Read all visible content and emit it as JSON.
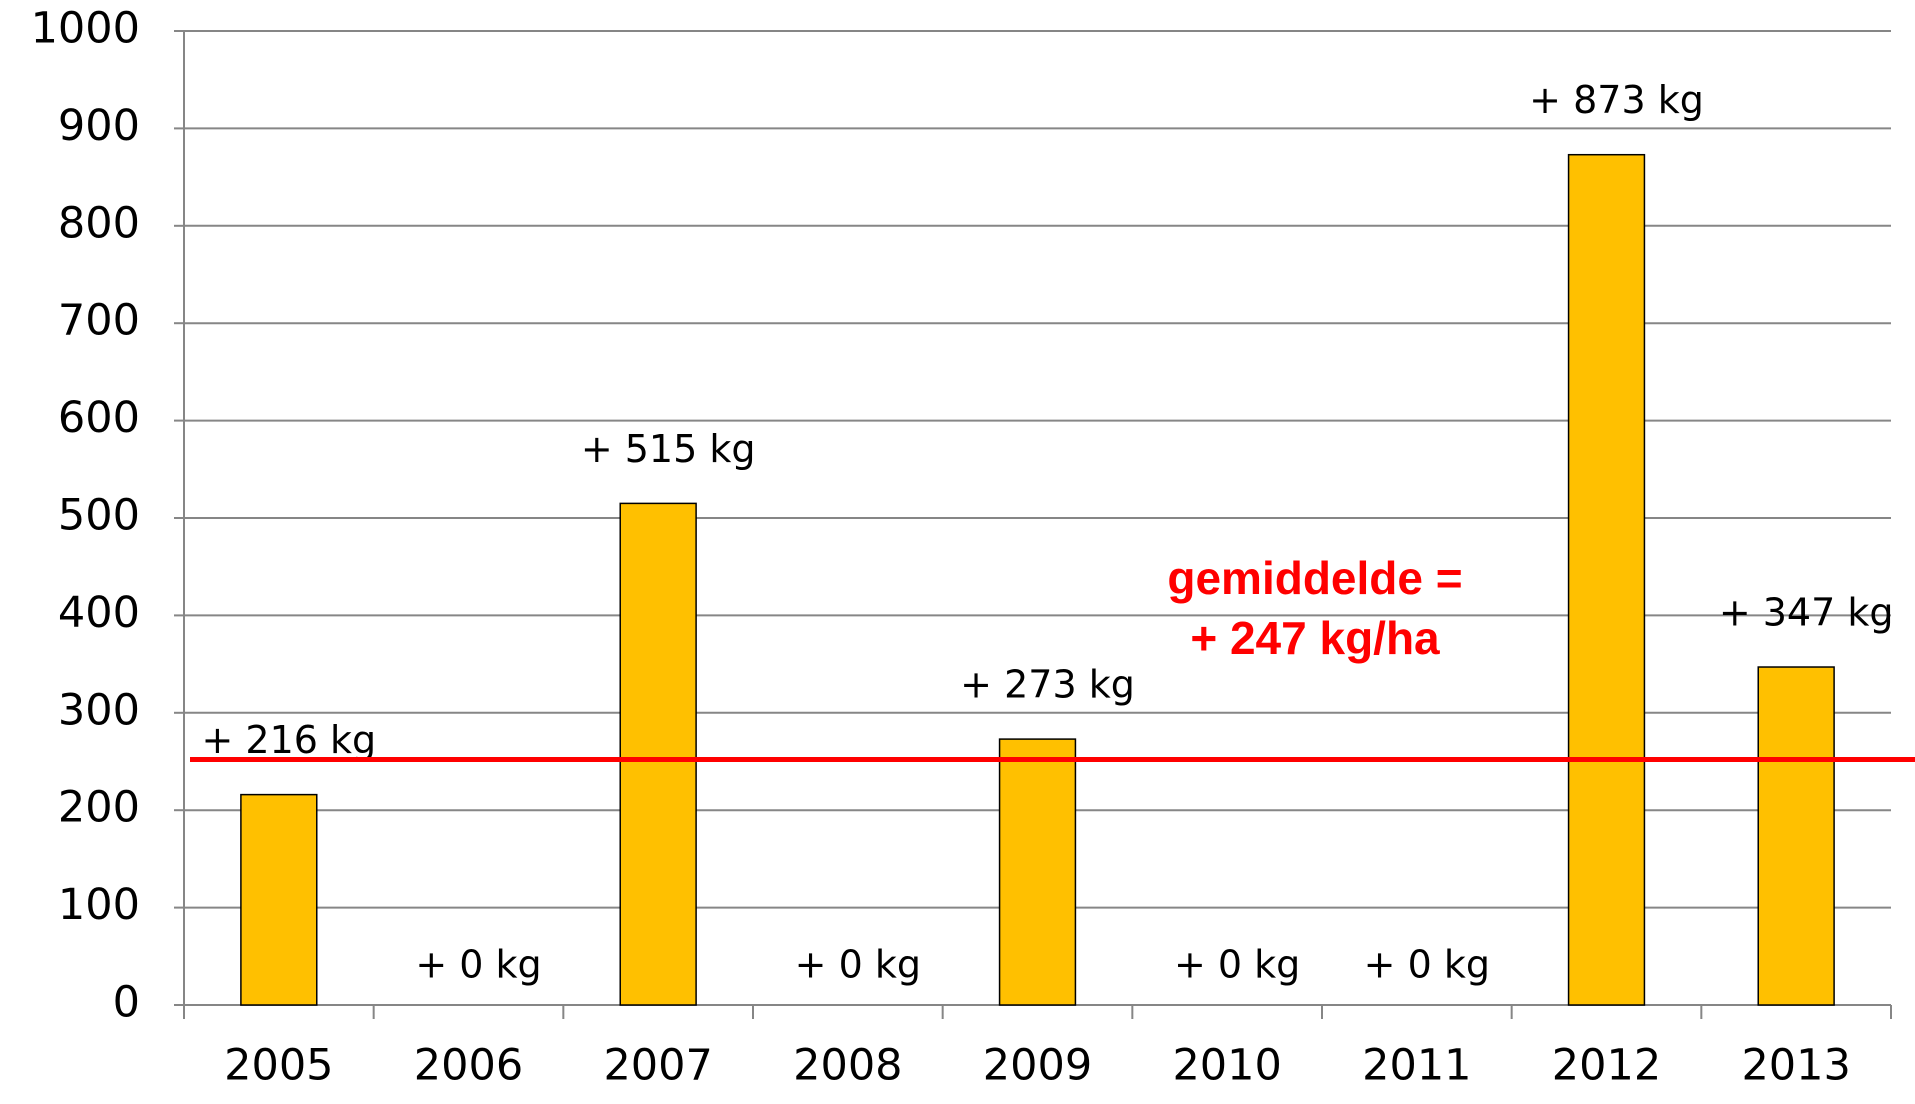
{
  "chart_data": {
    "type": "bar",
    "categories": [
      "2005",
      "2006",
      "2007",
      "2008",
      "2009",
      "2010",
      "2011",
      "2012",
      "2013"
    ],
    "values": [
      216,
      0,
      515,
      0,
      273,
      0,
      0,
      873,
      347
    ],
    "value_labels": [
      "+ 216 kg",
      "+ 0 kg",
      "+ 515 kg",
      "+ 0 kg",
      "+ 273 kg",
      "+ 0 kg",
      "+ 0 kg",
      "+ 873 kg",
      "+ 347 kg"
    ],
    "color": "#ffc000",
    "ylim": [
      0,
      1000
    ],
    "yticks": [
      0,
      100,
      200,
      300,
      400,
      500,
      600,
      700,
      800,
      900,
      1000
    ],
    "grid": true,
    "reference_line": {
      "value": 252,
      "color": "#ff0000"
    },
    "annotation": [
      "gemiddelde =",
      "+ 247 kg/ha"
    ]
  }
}
